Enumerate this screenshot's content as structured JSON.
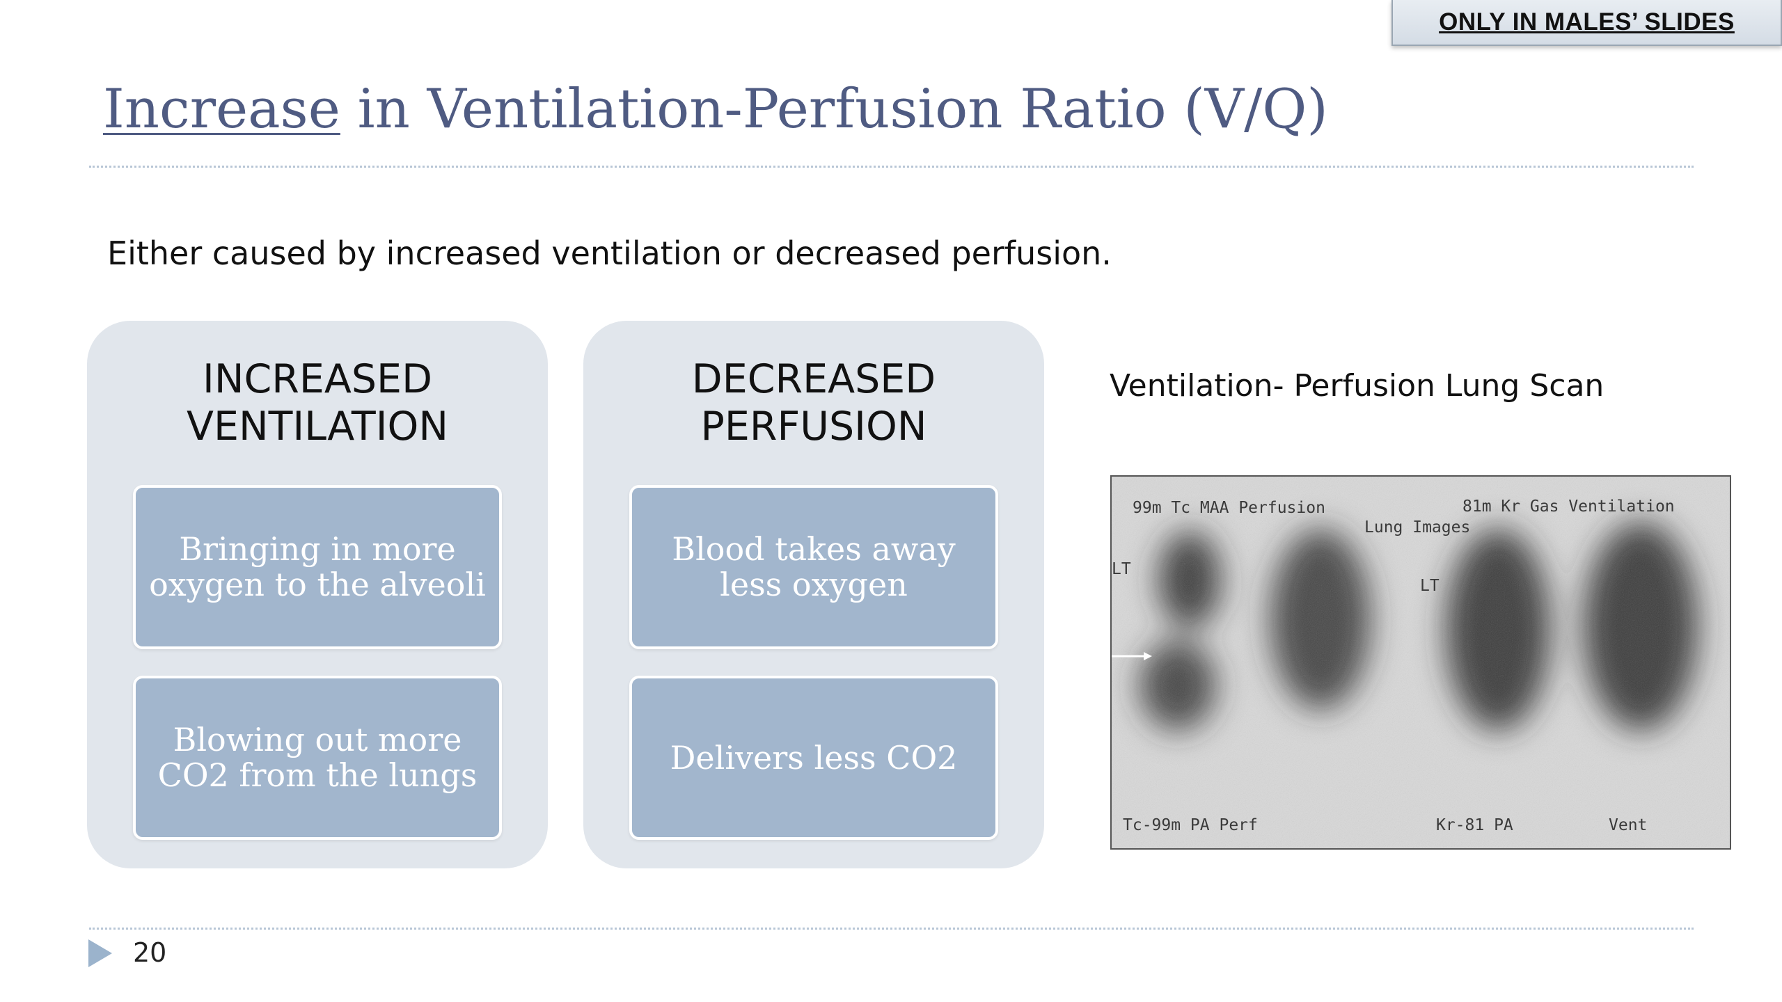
{
  "badge": {
    "label": "ONLY IN MALES’ SLIDES"
  },
  "title": {
    "underlined": "Increase",
    "rest": " in Ventilation-Perfusion Ratio (V/Q)"
  },
  "subtitle": "Either caused by increased ventilation or decreased perfusion.",
  "panels": [
    {
      "heading": "INCREASED\nVENTILATION",
      "items": [
        "Bringing in more\noxygen to the alveoli",
        "Blowing out more\nCO2 from the lungs"
      ]
    },
    {
      "heading": "DECREASED\nPERFUSION",
      "items": [
        "Blood takes away\nless oxygen",
        "Delivers less CO2"
      ]
    }
  ],
  "scan": {
    "caption": "Ventilation- Perfusion Lung Scan",
    "labels": {
      "perfusion_header": "99m Tc MAA Perfusion",
      "ventilation_header": "81m Kr Gas Ventilation",
      "center_header": "Lung Images",
      "lt_left": "LT",
      "lt_right": "LT",
      "footer_left": "Tc-99m PA Perf",
      "footer_mid": "Kr-81 PA",
      "footer_right": "Vent"
    }
  },
  "footer": {
    "page_number": "20"
  },
  "colors": {
    "title": "#4f5b82",
    "panel_bg": "#e1e6ec",
    "card_bg": "#a2b6cd",
    "rule": "#b8c6d6",
    "arrow": "#9bb3cc"
  }
}
